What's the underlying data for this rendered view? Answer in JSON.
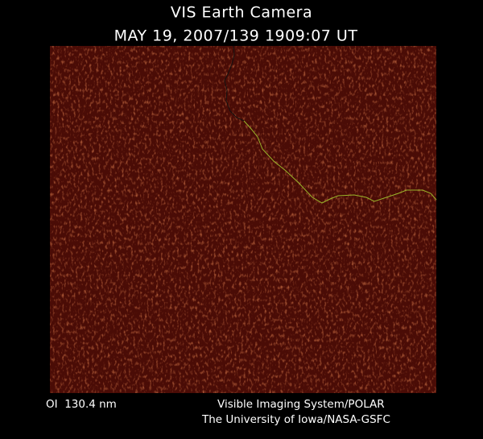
{
  "header": {
    "title": "VIS Earth Camera",
    "subtitle": "MAY 19, 2007/139 1909:07 UT"
  },
  "footer": {
    "filter": "OI  130.4 nm",
    "instrument": "Visible Imaging System/POLAR",
    "institution": "The University of Iowa/NASA-GSFC"
  }
}
